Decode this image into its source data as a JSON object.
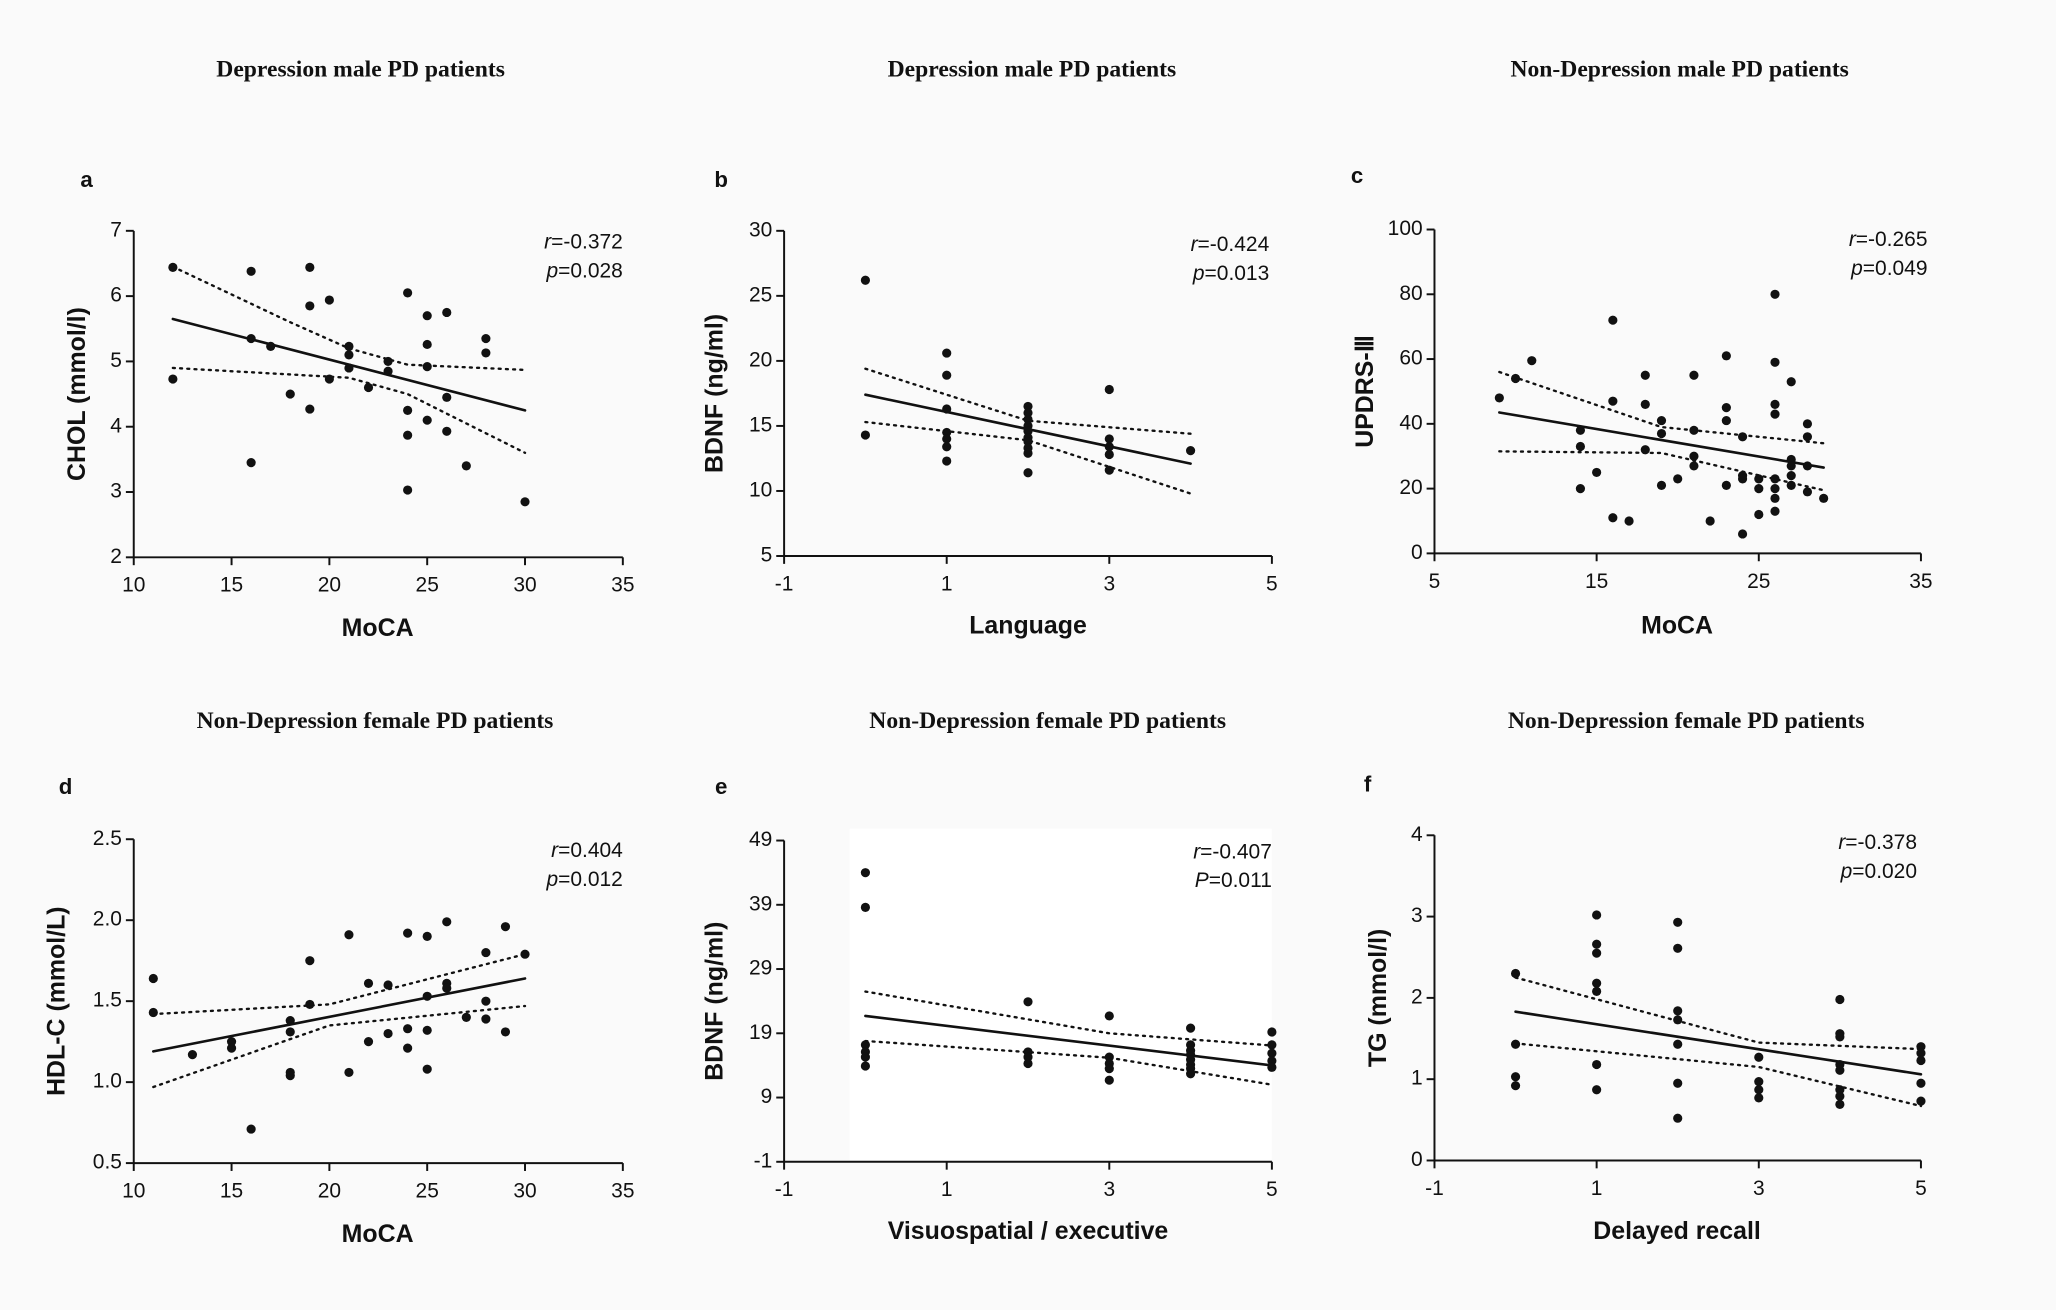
{
  "chart_data": [
    {
      "type": "scatter",
      "title": "Depression male PD patients",
      "panel_label": "a",
      "x_label": "MoCA",
      "y_label": "CHOL (mmol/l)",
      "x": [
        12,
        12,
        16,
        16,
        16,
        17,
        18,
        19,
        19,
        19,
        20,
        20,
        21,
        21,
        21,
        22,
        23,
        23,
        24,
        24,
        24,
        24,
        25,
        25,
        25,
        25,
        26,
        26,
        26,
        27,
        28,
        28,
        30
      ],
      "values": [
        6.44,
        4.73,
        6.38,
        5.35,
        3.45,
        5.23,
        4.5,
        6.44,
        5.85,
        4.27,
        5.94,
        4.73,
        5.23,
        5.1,
        4.9,
        4.6,
        5.0,
        4.85,
        6.05,
        4.25,
        3.87,
        3.03,
        5.7,
        5.26,
        4.92,
        4.1,
        5.75,
        4.45,
        3.93,
        3.4,
        5.35,
        5.13,
        2.85
      ],
      "color": "#111111",
      "xlim": [
        10,
        35
      ],
      "ylim": [
        2,
        7
      ],
      "xticks": [
        10,
        15,
        20,
        25,
        30,
        35
      ],
      "yticks": [
        2,
        3,
        4,
        5,
        6,
        7
      ],
      "fit_line": {
        "x": [
          12,
          30
        ],
        "y": [
          5.65,
          4.25
        ]
      },
      "ci_upper": {
        "x": [
          12,
          18,
          21,
          24,
          30
        ],
        "y": [
          6.45,
          5.6,
          5.2,
          4.95,
          4.87
        ]
      },
      "ci_lower": {
        "x": [
          12,
          18,
          21,
          24,
          30
        ],
        "y": [
          4.9,
          4.8,
          4.75,
          4.5,
          3.6
        ]
      },
      "annotations": [
        {
          "symbol": "r",
          "text": "=-0.372"
        },
        {
          "symbol": "p",
          "text": "=0.028"
        }
      ]
    },
    {
      "type": "scatter",
      "title": "Depression male PD patients",
      "panel_label": "b",
      "x_label": "Language",
      "y_label": "BDNF (ng/ml)",
      "x": [
        0,
        0,
        1,
        1,
        1,
        1,
        1,
        1,
        1,
        2,
        2,
        2,
        2,
        2,
        2,
        2,
        2,
        2,
        2,
        3,
        3,
        3,
        3,
        3,
        4
      ],
      "values": [
        26.2,
        14.3,
        20.6,
        18.9,
        16.3,
        14.5,
        14.0,
        13.4,
        12.3,
        16.5,
        16.0,
        15.5,
        15.0,
        14.6,
        14.1,
        13.8,
        13.3,
        12.9,
        11.4,
        17.8,
        14.0,
        13.4,
        12.8,
        11.6,
        13.1
      ],
      "color": "#111111",
      "xlim": [
        -1,
        5
      ],
      "ylim": [
        5,
        30
      ],
      "xticks": [
        -1,
        1,
        3,
        5
      ],
      "yticks": [
        5,
        10,
        15,
        20,
        25,
        30
      ],
      "fit_line": {
        "x": [
          0,
          4
        ],
        "y": [
          17.4,
          12.1
        ]
      },
      "ci_upper": {
        "x": [
          0,
          2,
          4
        ],
        "y": [
          19.4,
          15.4,
          14.4
        ]
      },
      "ci_lower": {
        "x": [
          0,
          2,
          4
        ],
        "y": [
          15.3,
          13.9,
          9.8
        ]
      },
      "annotations": [
        {
          "symbol": "r",
          "text": "=-0.424"
        },
        {
          "symbol": "p",
          "text": "=0.013"
        }
      ]
    },
    {
      "type": "scatter",
      "title": "Non-Depression male PD patients",
      "panel_label": "c",
      "x_label": "MoCA",
      "y_label": "UPDRS-Ⅲ",
      "x": [
        9,
        10,
        11,
        14,
        14,
        14,
        15,
        16,
        16,
        16,
        17,
        18,
        18,
        18,
        19,
        19,
        19,
        20,
        21,
        21,
        21,
        21,
        22,
        23,
        23,
        23,
        23,
        24,
        24,
        24,
        24,
        25,
        25,
        25,
        26,
        26,
        26,
        26,
        26,
        26,
        26,
        26,
        27,
        27,
        27,
        27,
        27,
        28,
        28,
        28,
        28,
        29
      ],
      "values": [
        48,
        54,
        59.5,
        38,
        33,
        20,
        25,
        72,
        47,
        11,
        10,
        55,
        46,
        32,
        41,
        37,
        21,
        23,
        55,
        38,
        30,
        27,
        10,
        61,
        45,
        41,
        21,
        36,
        24,
        23,
        6,
        23,
        20,
        12,
        80,
        59,
        46,
        43,
        23,
        20,
        17,
        13,
        53,
        29,
        27,
        24,
        21,
        40,
        36,
        27,
        19,
        17
      ],
      "color": "#111111",
      "xlim": [
        5,
        35
      ],
      "ylim": [
        0,
        100
      ],
      "xticks": [
        5,
        15,
        25,
        35
      ],
      "yticks": [
        0,
        20,
        40,
        60,
        80,
        100
      ],
      "fit_line": {
        "x": [
          9,
          29
        ],
        "y": [
          43.5,
          26.5
        ]
      },
      "ci_upper": {
        "x": [
          9,
          19,
          29
        ],
        "y": [
          56,
          39,
          34
        ]
      },
      "ci_lower": {
        "x": [
          9,
          19,
          29
        ],
        "y": [
          31.5,
          31,
          19.5
        ]
      },
      "annotations": [
        {
          "symbol": "r",
          "text": "=-0.265"
        },
        {
          "symbol": "p",
          "text": "=0.049"
        }
      ]
    },
    {
      "type": "scatter",
      "title": "Non-Depression female PD patients",
      "panel_label": "d",
      "x_label": "MoCA",
      "y_label": "HDL-C (mmol/L)",
      "x": [
        11,
        11,
        13,
        15,
        15,
        16,
        18,
        18,
        18,
        18,
        19,
        19,
        21,
        21,
        22,
        22,
        23,
        23,
        24,
        24,
        24,
        25,
        25,
        25,
        25,
        26,
        26,
        26,
        27,
        28,
        28,
        28,
        29,
        29,
        30
      ],
      "values": [
        1.64,
        1.43,
        1.17,
        1.25,
        1.21,
        0.71,
        1.38,
        1.31,
        1.06,
        1.04,
        1.75,
        1.48,
        1.91,
        1.06,
        1.61,
        1.25,
        1.6,
        1.3,
        1.92,
        1.33,
        1.21,
        1.9,
        1.53,
        1.32,
        1.08,
        1.99,
        1.61,
        1.58,
        1.4,
        1.8,
        1.5,
        1.39,
        1.96,
        1.31,
        1.79
      ],
      "color": "#111111",
      "xlim": [
        10,
        35
      ],
      "ylim": [
        0.5,
        2.5
      ],
      "xticks": [
        10,
        15,
        20,
        25,
        30,
        35
      ],
      "yticks": [
        0.5,
        {
          "value": 1,
          "label": "1.0"
        },
        1.5,
        {
          "value": 2,
          "label": "2.0"
        },
        2.5
      ],
      "fit_line": {
        "x": [
          11,
          30
        ],
        "y": [
          1.19,
          1.64
        ]
      },
      "ci_upper": {
        "x": [
          11,
          20,
          30
        ],
        "y": [
          1.42,
          1.48,
          1.79
        ]
      },
      "ci_lower": {
        "x": [
          11,
          20,
          30
        ],
        "y": [
          0.97,
          1.35,
          1.47
        ]
      },
      "annotations": [
        {
          "symbol": "r",
          "text": "=0.404"
        },
        {
          "symbol": "p",
          "text": "=0.012"
        }
      ]
    },
    {
      "type": "scatter",
      "title": "Non-Depression female PD patients",
      "panel_label": "e",
      "x_label": "Visuospatial / executive",
      "y_label": "BDNF (ng/ml)",
      "x": [
        0,
        0,
        0,
        0,
        0,
        0,
        2,
        2,
        2,
        2,
        3,
        3,
        3,
        3,
        3,
        4,
        4,
        4,
        4,
        4,
        4,
        4,
        4,
        5,
        5,
        5,
        5,
        5
      ],
      "values": [
        44,
        38.6,
        17.2,
        16.1,
        15.3,
        13.9,
        23.9,
        16.1,
        15.3,
        14.3,
        21.7,
        15.3,
        14.3,
        13.5,
        11.7,
        19.8,
        17.2,
        16.3,
        15.7,
        14.9,
        14.1,
        13.5,
        12.7,
        19.2,
        17.2,
        15.9,
        14.7,
        13.7
      ],
      "color": "#111111",
      "xlim": [
        -1,
        5
      ],
      "ylim": [
        -1,
        49
      ],
      "xticks": [
        -1,
        1,
        3,
        5
      ],
      "yticks": [
        -1,
        9,
        19,
        29,
        39,
        49
      ],
      "fit_line": {
        "x": [
          0,
          5
        ],
        "y": [
          21.7,
          14
        ]
      },
      "ci_upper": {
        "x": [
          0,
          3,
          5
        ],
        "y": [
          25.5,
          19,
          17.1
        ]
      },
      "ci_lower": {
        "x": [
          0,
          3,
          5
        ],
        "y": [
          17.8,
          15.2,
          11
        ]
      },
      "annotations": [
        {
          "symbol": "r",
          "text": "=-0.407"
        },
        {
          "symbol": "P",
          "text": "=0.011"
        }
      ]
    },
    {
      "type": "scatter",
      "title": "Non-Depression female PD patients",
      "panel_label": "f",
      "x_label": "Delayed recall",
      "y_label": "TG (mmol/l)",
      "x": [
        0,
        0,
        0,
        0,
        1,
        1,
        1,
        1,
        1,
        1,
        1,
        2,
        2,
        2,
        2,
        2,
        2,
        2,
        3,
        3,
        3,
        3,
        4,
        4,
        4,
        4,
        4,
        4,
        4,
        4,
        5,
        5,
        5,
        5,
        5
      ],
      "values": [
        2.3,
        1.43,
        1.03,
        0.92,
        3.02,
        2.66,
        2.55,
        2.18,
        2.08,
        1.18,
        0.87,
        2.93,
        2.61,
        1.84,
        1.73,
        1.43,
        0.95,
        0.52,
        1.27,
        0.97,
        0.87,
        0.77,
        1.98,
        1.56,
        1.52,
        1.18,
        1.11,
        0.87,
        0.79,
        0.69,
        1.4,
        1.32,
        1.23,
        0.95,
        0.73
      ],
      "color": "#111111",
      "xlim": [
        -1,
        5
      ],
      "ylim": [
        0,
        4
      ],
      "xticks": [
        -1,
        1,
        3,
        5
      ],
      "yticks": [
        0,
        1,
        2,
        3,
        4
      ],
      "fit_line": {
        "x": [
          0,
          5
        ],
        "y": [
          1.83,
          1.06
        ]
      },
      "ci_upper": {
        "x": [
          0,
          3,
          5
        ],
        "y": [
          2.25,
          1.45,
          1.37
        ]
      },
      "ci_lower": {
        "x": [
          0,
          3,
          5
        ],
        "y": [
          1.44,
          1.15,
          0.67
        ]
      },
      "annotations": [
        {
          "symbol": "r",
          "text": "=-0.378"
        },
        {
          "symbol": "p",
          "text": "=0.020"
        }
      ]
    }
  ]
}
